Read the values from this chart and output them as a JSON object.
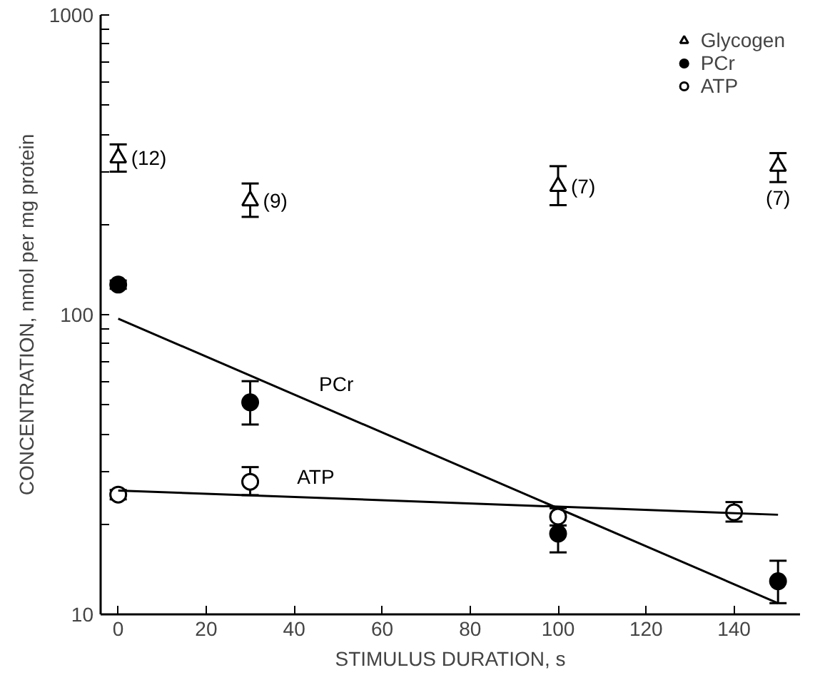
{
  "chart_data": {
    "type": "scatter",
    "xlabel": "STIMULUS DURATION, s",
    "ylabel": "CONCENTRATION, nmol per mg protein",
    "log": "y",
    "grid": false,
    "legend": "top right",
    "xlim": [
      -4,
      155
    ],
    "xticks": [
      0,
      20,
      40,
      60,
      80,
      100,
      120,
      140
    ],
    "ylim": [
      10,
      1000
    ],
    "yticks": [
      10,
      {
        "value": 20,
        "label": null
      },
      {
        "value": 30,
        "label": null
      },
      {
        "value": 40,
        "label": null
      },
      {
        "value": 50,
        "label": null
      },
      {
        "value": 60,
        "label": null
      },
      {
        "value": 70,
        "label": null
      },
      {
        "value": 80,
        "label": null
      },
      {
        "value": 90,
        "label": null
      },
      100,
      {
        "value": 200,
        "label": null
      },
      {
        "value": 300,
        "label": null
      },
      {
        "value": 400,
        "label": null
      },
      {
        "value": 500,
        "label": null
      },
      {
        "value": 600,
        "label": null
      },
      {
        "value": 700,
        "label": null
      },
      {
        "value": 800,
        "label": null
      },
      {
        "value": 900,
        "label": null
      },
      1000
    ],
    "series": [
      {
        "name": "Glycogen",
        "color": "#000000",
        "marker": "triangle",
        "x": [
          0,
          30,
          100,
          150
        ],
        "values": [
          334,
          240,
          268,
          313
        ],
        "errors": [
          [
            300,
            370
          ],
          [
            212,
            274
          ],
          [
            232,
            313
          ],
          [
            277,
            346
          ]
        ]
      },
      {
        "name": "PCr",
        "color": "#000000",
        "marker": "circle",
        "x": [
          0,
          30,
          100,
          150
        ],
        "values": [
          126,
          51,
          18.6,
          12.9
        ],
        "errors": [
          [
            122,
            130
          ],
          [
            43,
            60
          ],
          [
            16.1,
            21
          ],
          [
            10.9,
            15.1
          ]
        ]
      },
      {
        "name": "ATP",
        "color": "#000000",
        "marker": "circle",
        "x": [
          0,
          30,
          100,
          140
        ],
        "values": [
          25.1,
          27.7,
          21.2,
          21.9
        ],
        "errors": [
          [
            24.2,
            26
          ],
          [
            25,
            31
          ],
          [
            19.8,
            22.6
          ],
          [
            20.4,
            23.7
          ]
        ]
      },
      {
        "type": "line",
        "color": "#000000",
        "line_style": "solid",
        "x": [
          0,
          150
        ],
        "values": [
          97,
          10.9
        ]
      },
      {
        "type": "line",
        "color": "#000000",
        "line_style": "solid",
        "x": [
          0,
          150
        ],
        "values": [
          25.9,
          21.5
        ]
      }
    ],
    "annotations": [
      {
        "text": "(12)",
        "x": 0,
        "y": 334
      },
      {
        "text": "(9)",
        "x": 30,
        "y": 240
      },
      {
        "text": "(7)",
        "x": 100,
        "y": 268
      },
      {
        "text": "(7)",
        "x": 150,
        "y": 313
      },
      {
        "text": "PCr",
        "x": 45,
        "y": 50.5
      },
      {
        "text": "ATP",
        "x": 40,
        "y": 24.7
      }
    ]
  }
}
